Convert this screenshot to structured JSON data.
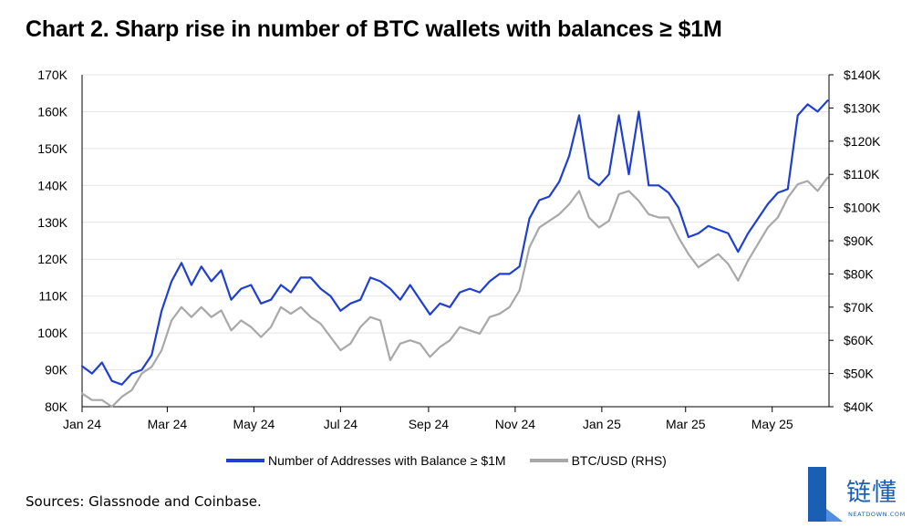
{
  "title": "Chart 2. Sharp rise in number of BTC wallets with balances ≥ $1M",
  "sources": "Sources: Glassnode and Coinbase.",
  "logo": {
    "text": "链懂",
    "subtext": "NEATDOWN.COM",
    "color": "#1a5fb4"
  },
  "chart_data": {
    "type": "line",
    "x_tick_labels": [
      "Jan 24",
      "Mar 24",
      "May 24",
      "Jul 24",
      "Sep 24",
      "Nov 24",
      "Jan 25",
      "Mar 25",
      "May 25"
    ],
    "x_tick_dates": [
      "2024-01-01",
      "2024-03-01",
      "2024-05-01",
      "2024-07-01",
      "2024-09-01",
      "2024-11-01",
      "2025-01-01",
      "2025-03-01",
      "2025-05-01"
    ],
    "x_range": [
      "2024-01-01",
      "2025-06-10"
    ],
    "y_left": {
      "ticks": [
        "80K",
        "90K",
        "100K",
        "110K",
        "120K",
        "130K",
        "140K",
        "150K",
        "160K",
        "170K"
      ],
      "range": [
        80000,
        170000
      ]
    },
    "y_right": {
      "ticks": [
        "$40K",
        "$50K",
        "$60K",
        "$70K",
        "$80K",
        "$90K",
        "$100K",
        "$110K",
        "$120K",
        "$130K",
        "$140K"
      ],
      "range": [
        40000,
        140000
      ]
    },
    "grid": true,
    "legend_position": "bottom",
    "series": [
      {
        "name": "Number of Addresses with Balance ≥ $1M",
        "axis": "left",
        "color": "#1f3fd1",
        "x": [
          "2024-01-01",
          "2024-01-08",
          "2024-01-15",
          "2024-01-22",
          "2024-01-29",
          "2024-02-05",
          "2024-02-12",
          "2024-02-19",
          "2024-02-26",
          "2024-03-04",
          "2024-03-11",
          "2024-03-18",
          "2024-03-25",
          "2024-04-01",
          "2024-04-08",
          "2024-04-15",
          "2024-04-22",
          "2024-04-29",
          "2024-05-06",
          "2024-05-13",
          "2024-05-20",
          "2024-05-27",
          "2024-06-03",
          "2024-06-10",
          "2024-06-17",
          "2024-06-24",
          "2024-07-01",
          "2024-07-08",
          "2024-07-15",
          "2024-07-22",
          "2024-07-29",
          "2024-08-05",
          "2024-08-12",
          "2024-08-19",
          "2024-08-26",
          "2024-09-02",
          "2024-09-09",
          "2024-09-16",
          "2024-09-23",
          "2024-09-30",
          "2024-10-07",
          "2024-10-14",
          "2024-10-21",
          "2024-10-28",
          "2024-11-04",
          "2024-11-11",
          "2024-11-18",
          "2024-11-25",
          "2024-12-02",
          "2024-12-09",
          "2024-12-16",
          "2024-12-23",
          "2024-12-30",
          "2025-01-06",
          "2025-01-13",
          "2025-01-20",
          "2025-01-27",
          "2025-02-03",
          "2025-02-10",
          "2025-02-17",
          "2025-02-24",
          "2025-03-03",
          "2025-03-10",
          "2025-03-17",
          "2025-03-24",
          "2025-03-31",
          "2025-04-07",
          "2025-04-14",
          "2025-04-21",
          "2025-04-28",
          "2025-05-05",
          "2025-05-12",
          "2025-05-19",
          "2025-05-26",
          "2025-06-02",
          "2025-06-09"
        ],
        "values": [
          91000,
          89000,
          92000,
          87000,
          86000,
          89000,
          90000,
          94000,
          106000,
          114000,
          119000,
          113000,
          118000,
          114000,
          117000,
          109000,
          112000,
          113000,
          108000,
          109000,
          113000,
          111000,
          115000,
          115000,
          112000,
          110000,
          106000,
          108000,
          109000,
          115000,
          114000,
          112000,
          109000,
          113000,
          109000,
          105000,
          108000,
          107000,
          111000,
          112000,
          111000,
          114000,
          116000,
          116000,
          118000,
          131000,
          136000,
          137000,
          141000,
          148000,
          159000,
          142000,
          140000,
          143000,
          159000,
          143000,
          160000,
          140000,
          140000,
          138000,
          134000,
          126000,
          127000,
          129000,
          128000,
          127000,
          122000,
          127000,
          131000,
          135000,
          138000,
          139000,
          159000,
          162000,
          160000,
          163000
        ]
      },
      {
        "name": "BTC/USD (RHS)",
        "axis": "right",
        "color": "#a8a8a8",
        "x": [
          "2024-01-01",
          "2024-01-08",
          "2024-01-15",
          "2024-01-22",
          "2024-01-29",
          "2024-02-05",
          "2024-02-12",
          "2024-02-19",
          "2024-02-26",
          "2024-03-04",
          "2024-03-11",
          "2024-03-18",
          "2024-03-25",
          "2024-04-01",
          "2024-04-08",
          "2024-04-15",
          "2024-04-22",
          "2024-04-29",
          "2024-05-06",
          "2024-05-13",
          "2024-05-20",
          "2024-05-27",
          "2024-06-03",
          "2024-06-10",
          "2024-06-17",
          "2024-06-24",
          "2024-07-01",
          "2024-07-08",
          "2024-07-15",
          "2024-07-22",
          "2024-07-29",
          "2024-08-05",
          "2024-08-12",
          "2024-08-19",
          "2024-08-26",
          "2024-09-02",
          "2024-09-09",
          "2024-09-16",
          "2024-09-23",
          "2024-09-30",
          "2024-10-07",
          "2024-10-14",
          "2024-10-21",
          "2024-10-28",
          "2024-11-04",
          "2024-11-11",
          "2024-11-18",
          "2024-11-25",
          "2024-12-02",
          "2024-12-09",
          "2024-12-16",
          "2024-12-23",
          "2024-12-30",
          "2025-01-06",
          "2025-01-13",
          "2025-01-20",
          "2025-01-27",
          "2025-02-03",
          "2025-02-10",
          "2025-02-17",
          "2025-02-24",
          "2025-03-03",
          "2025-03-10",
          "2025-03-17",
          "2025-03-24",
          "2025-03-31",
          "2025-04-07",
          "2025-04-14",
          "2025-04-21",
          "2025-04-28",
          "2025-05-05",
          "2025-05-12",
          "2025-05-19",
          "2025-05-26",
          "2025-06-02",
          "2025-06-09"
        ],
        "values": [
          44000,
          42000,
          42000,
          40000,
          43000,
          45000,
          50000,
          52000,
          57000,
          66000,
          70000,
          67000,
          70000,
          67000,
          69000,
          63000,
          66000,
          64000,
          61000,
          64000,
          70000,
          68000,
          70000,
          67000,
          65000,
          61000,
          57000,
          59000,
          64000,
          67000,
          66000,
          54000,
          59000,
          60000,
          59000,
          55000,
          58000,
          60000,
          64000,
          63000,
          62000,
          67000,
          68000,
          70000,
          75000,
          88000,
          94000,
          96000,
          98000,
          101000,
          105000,
          97000,
          94000,
          96000,
          104000,
          105000,
          102000,
          98000,
          97000,
          97000,
          91000,
          86000,
          82000,
          84000,
          86000,
          83000,
          78000,
          84000,
          89000,
          94000,
          97000,
          103000,
          107000,
          108000,
          105000,
          109000
        ]
      }
    ]
  }
}
